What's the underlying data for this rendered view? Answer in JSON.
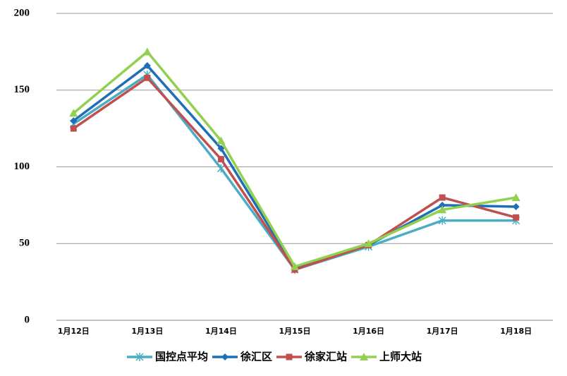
{
  "chart_data": {
    "type": "line",
    "categories": [
      "1月12日",
      "1月13日",
      "1月14日",
      "1月15日",
      "1月16日",
      "1月17日",
      "1月18日"
    ],
    "series": [
      {
        "name": "国控点平均",
        "color": "#4bacc6",
        "marker": "x",
        "values": [
          128,
          160,
          99,
          33,
          48,
          65,
          65
        ]
      },
      {
        "name": "徐汇区",
        "color": "#1f6eb8",
        "marker": "diamond",
        "values": [
          130,
          166,
          112,
          34,
          49,
          75,
          74
        ]
      },
      {
        "name": "徐家汇站",
        "color": "#c0504d",
        "marker": "square",
        "values": [
          125,
          158,
          105,
          33,
          49,
          80,
          67
        ]
      },
      {
        "name": "上师大站",
        "color": "#92d050",
        "marker": "triangle",
        "values": [
          135,
          175,
          117,
          35,
          50,
          72,
          80
        ]
      }
    ],
    "ylim": [
      0,
      200
    ],
    "yticks": [
      0,
      50,
      100,
      150,
      200
    ],
    "grid": true,
    "legend": "bottom"
  }
}
